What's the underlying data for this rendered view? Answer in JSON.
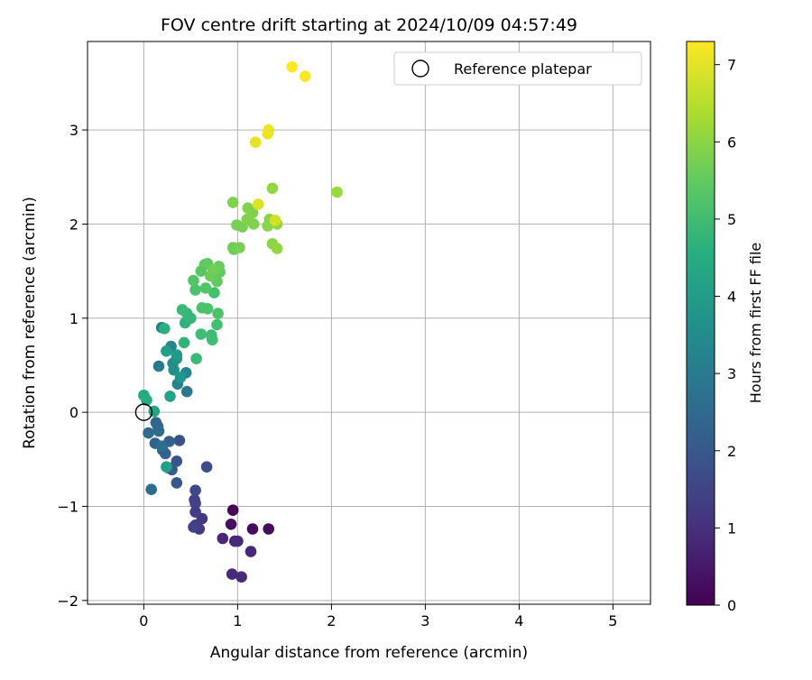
{
  "chart_data": {
    "type": "scatter",
    "title": "FOV centre drift starting at 2024/10/09 04:57:49",
    "xlabel": "Angular distance from reference (arcmin)",
    "ylabel": "Rotation from reference (arcmin)",
    "xlim": [
      -0.6,
      5.4
    ],
    "ylim": [
      -2.04,
      3.94
    ],
    "xticks": [
      0,
      1,
      2,
      3,
      4,
      5
    ],
    "xtick_labels": [
      "0",
      "1",
      "2",
      "3",
      "4",
      "5"
    ],
    "yticks": [
      -2,
      -1,
      0,
      1,
      2,
      3
    ],
    "ytick_labels": [
      "−2",
      "−1",
      "0",
      "1",
      "2",
      "3"
    ],
    "grid": true,
    "legend": {
      "position": "top-right",
      "entries": [
        "Reference platepar"
      ]
    },
    "reference_point": {
      "x": 0,
      "y": 0,
      "marker": "open-circle"
    },
    "colorbar": {
      "label": "Hours from first FF file",
      "colormap": "viridis",
      "range": [
        0,
        7.3
      ],
      "ticks": [
        0,
        1,
        2,
        3,
        4,
        5,
        6,
        7
      ],
      "tick_labels": [
        "0",
        "1",
        "2",
        "3",
        "4",
        "5",
        "6",
        "7"
      ]
    },
    "columns": [
      "x",
      "y",
      "hours"
    ],
    "points": [
      [
        0.95,
        -1.04,
        0.1
      ],
      [
        1.16,
        -1.24,
        0.2
      ],
      [
        1.33,
        -1.24,
        0.2
      ],
      [
        0.93,
        -1.19,
        0.3
      ],
      [
        0.97,
        -1.37,
        0.7
      ],
      [
        1.0,
        -1.37,
        0.9
      ],
      [
        0.84,
        -1.34,
        0.8
      ],
      [
        1.14,
        -1.48,
        0.8
      ],
      [
        0.94,
        -1.72,
        0.9
      ],
      [
        1.04,
        -1.75,
        0.9
      ],
      [
        0.62,
        -1.13,
        1.2
      ],
      [
        0.59,
        -1.24,
        1.2
      ],
      [
        0.55,
        -1.2,
        1.3
      ],
      [
        0.53,
        -1.22,
        1.4
      ],
      [
        0.55,
        -1.06,
        1.3
      ],
      [
        0.54,
        -0.93,
        1.4
      ],
      [
        0.55,
        -0.97,
        1.4
      ],
      [
        0.55,
        -0.83,
        1.6
      ],
      [
        0.67,
        -0.58,
        1.7
      ],
      [
        0.38,
        -0.3,
        1.8
      ],
      [
        0.35,
        -0.52,
        1.9
      ],
      [
        0.35,
        -0.75,
        2.0
      ],
      [
        0.26,
        -0.59,
        2.0
      ],
      [
        0.3,
        -0.61,
        2.1
      ],
      [
        0.2,
        -0.4,
        2.1
      ],
      [
        0.23,
        -0.44,
        2.2
      ],
      [
        0.27,
        -0.31,
        2.2
      ],
      [
        0.12,
        -0.33,
        2.3
      ],
      [
        0.15,
        -0.15,
        2.4
      ],
      [
        0.13,
        -0.11,
        2.4
      ],
      [
        0.05,
        -0.22,
        2.5
      ],
      [
        0.16,
        -0.2,
        2.5
      ],
      [
        0.08,
        -0.82,
        2.6
      ],
      [
        0.19,
        -0.36,
        2.7
      ],
      [
        0.46,
        0.22,
        2.9
      ],
      [
        0.16,
        0.49,
        3.0
      ],
      [
        0.19,
        0.9,
        3.1
      ],
      [
        0.36,
        0.3,
        3.2
      ],
      [
        0.29,
        0.7,
        3.3
      ],
      [
        0.45,
        0.42,
        3.3
      ],
      [
        0.31,
        0.52,
        3.5
      ],
      [
        0.32,
        0.45,
        3.6
      ],
      [
        0.35,
        0.57,
        3.7
      ],
      [
        0.39,
        0.37,
        3.8
      ],
      [
        0.35,
        0.61,
        4.0
      ],
      [
        0.24,
        0.65,
        4.1
      ],
      [
        0.28,
        0.17,
        4.2
      ],
      [
        0.24,
        -0.58,
        4.2
      ],
      [
        0.11,
        0.01,
        4.3
      ],
      [
        0.0,
        0.18,
        4.4
      ],
      [
        0.03,
        0.13,
        4.5
      ],
      [
        0.22,
        0.89,
        4.6
      ],
      [
        0.43,
        0.74,
        4.7
      ],
      [
        0.44,
        0.95,
        4.7
      ],
      [
        0.46,
        1.05,
        4.8
      ],
      [
        0.5,
        1.0,
        4.8
      ],
      [
        0.41,
        1.09,
        4.9
      ],
      [
        0.56,
        0.57,
        4.9
      ],
      [
        0.61,
        0.83,
        5.0
      ],
      [
        0.72,
        0.82,
        5.0
      ],
      [
        0.73,
        0.77,
        5.0
      ],
      [
        0.78,
        0.93,
        5.1
      ],
      [
        0.75,
        1.27,
        5.1
      ],
      [
        0.62,
        1.11,
        5.2
      ],
      [
        0.68,
        1.1,
        5.2
      ],
      [
        0.79,
        1.05,
        5.2
      ],
      [
        0.55,
        1.3,
        5.2
      ],
      [
        0.53,
        1.4,
        5.3
      ],
      [
        0.66,
        1.32,
        5.3
      ],
      [
        0.61,
        1.5,
        5.4
      ],
      [
        0.65,
        1.57,
        5.4
      ],
      [
        0.68,
        1.58,
        5.5
      ],
      [
        0.78,
        1.39,
        5.5
      ],
      [
        0.81,
        1.49,
        5.5
      ],
      [
        0.8,
        1.55,
        5.6
      ],
      [
        0.71,
        1.45,
        5.6
      ],
      [
        0.74,
        1.51,
        5.7
      ],
      [
        0.95,
        1.75,
        5.7
      ],
      [
        0.96,
        1.73,
        5.7
      ],
      [
        1.02,
        1.75,
        5.8
      ],
      [
        0.99,
        1.99,
        5.8
      ],
      [
        1.05,
        1.97,
        5.8
      ],
      [
        1.1,
        2.05,
        5.9
      ],
      [
        1.11,
        2.17,
        5.9
      ],
      [
        1.17,
        2.0,
        5.9
      ],
      [
        1.16,
        2.12,
        5.9
      ],
      [
        0.95,
        2.23,
        5.9
      ],
      [
        1.32,
        1.98,
        6.0
      ],
      [
        1.34,
        2.05,
        6.0
      ],
      [
        1.37,
        1.79,
        6.0
      ],
      [
        1.42,
        1.74,
        6.1
      ],
      [
        1.42,
        2.0,
        6.1
      ],
      [
        1.37,
        2.38,
        6.1
      ],
      [
        2.06,
        2.34,
        6.2
      ],
      [
        1.4,
        2.04,
        6.8
      ],
      [
        1.22,
        2.21,
        6.9
      ],
      [
        1.19,
        2.87,
        7.0
      ],
      [
        1.32,
        2.96,
        7.1
      ],
      [
        1.33,
        3.0,
        7.1
      ],
      [
        1.58,
        3.67,
        7.3
      ],
      [
        1.72,
        3.57,
        7.3
      ]
    ]
  }
}
